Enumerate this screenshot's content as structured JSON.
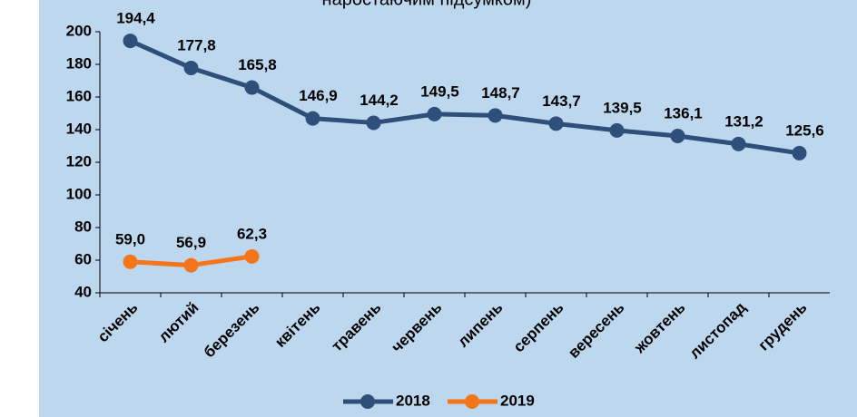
{
  "chart_data": {
    "type": "line",
    "subtitle": "наростаючим підсумком)",
    "categories": [
      "січень",
      "лютий",
      "березень",
      "квітень",
      "травень",
      "червень",
      "липень",
      "серпень",
      "вересень",
      "жовтень",
      "листопад",
      "грудень"
    ],
    "series": [
      {
        "name": "2018",
        "color": "#2e4f7a",
        "values": [
          194.4,
          177.8,
          165.8,
          146.9,
          144.2,
          149.5,
          148.7,
          143.7,
          139.5,
          136.1,
          131.2,
          125.6
        ],
        "value_labels": [
          "194,4",
          "177,8",
          "165,8",
          "146,9",
          "144,2",
          "149,5",
          "148,7",
          "143,7",
          "139,5",
          "136,1",
          "131,2",
          "125,6"
        ]
      },
      {
        "name": "2019",
        "color": "#f5761a",
        "values": [
          59.0,
          56.9,
          62.3,
          null,
          null,
          null,
          null,
          null,
          null,
          null,
          null,
          null
        ],
        "value_labels": [
          "59,0",
          "56,9",
          "62,3",
          null,
          null,
          null,
          null,
          null,
          null,
          null,
          null,
          null
        ]
      }
    ],
    "ylim": [
      40,
      200
    ],
    "yticks": [
      40,
      60,
      80,
      100,
      120,
      140,
      160,
      180,
      200
    ],
    "legend": "bottom"
  }
}
